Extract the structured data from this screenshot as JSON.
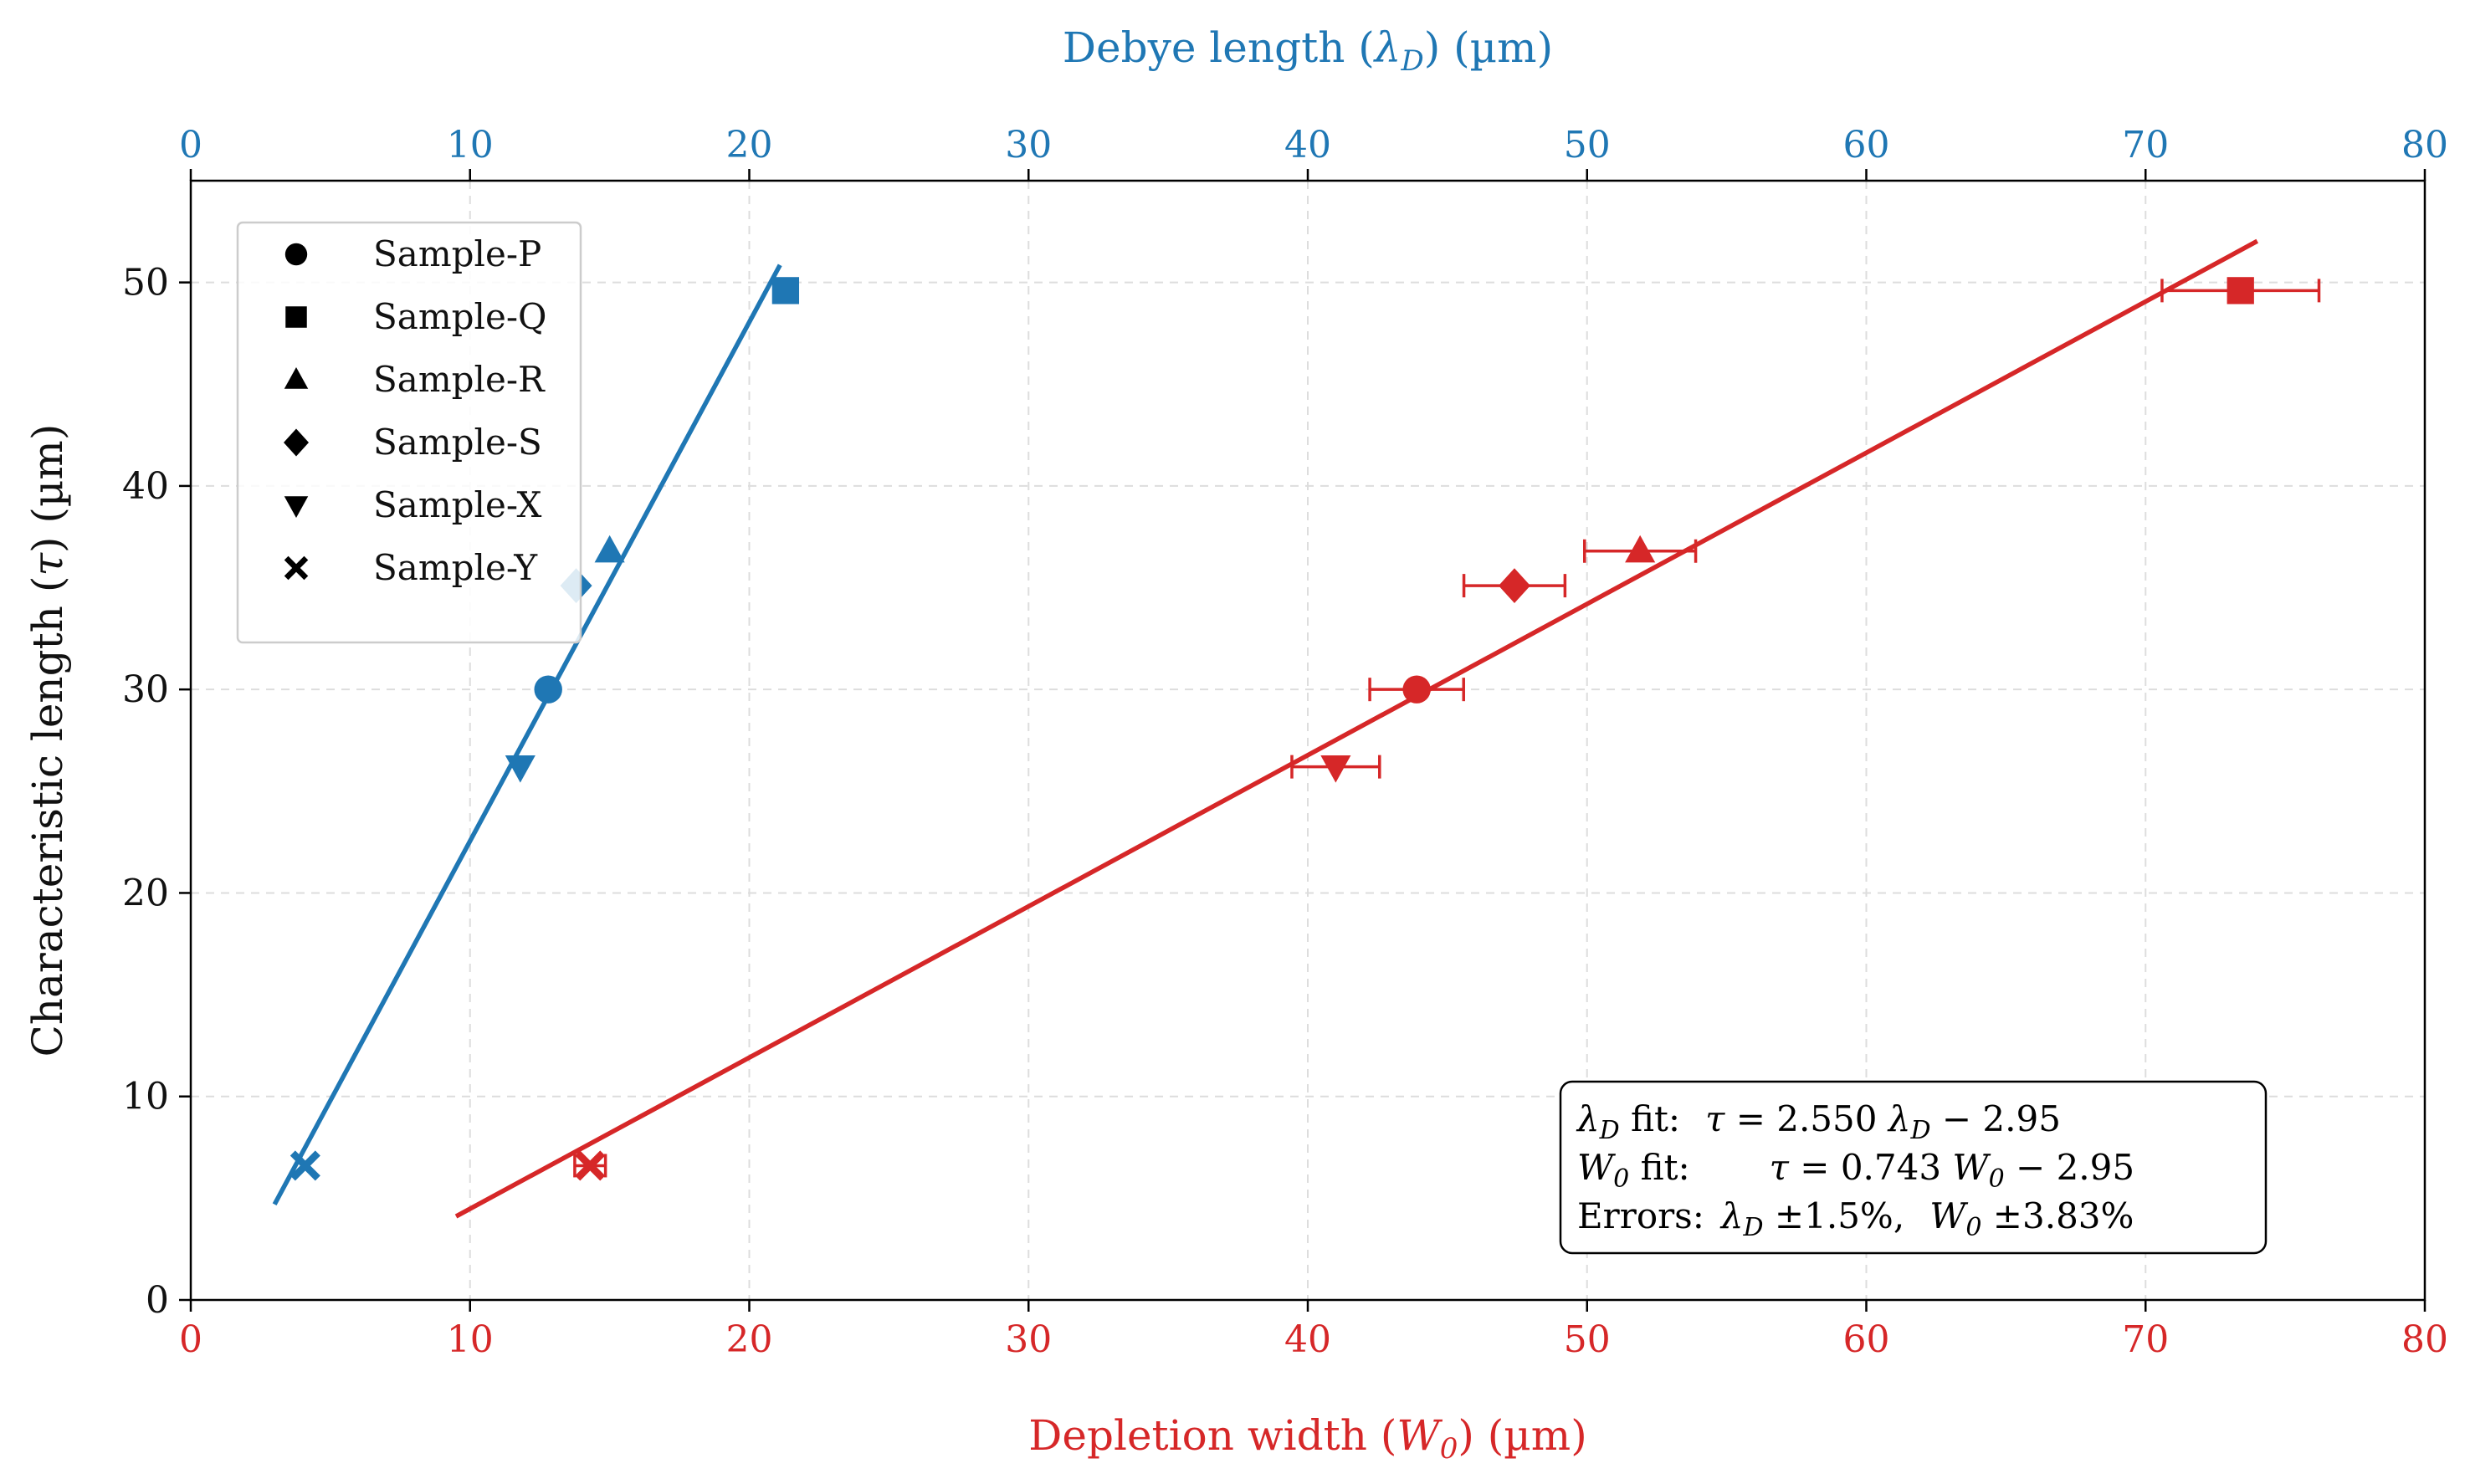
{
  "chart_data": {
    "type": "scatter",
    "colors": {
      "lambda": "#1f77b4",
      "w0": "#d62728",
      "grid": "#dddddd",
      "axis": "#000000"
    },
    "y_axis": {
      "label": "Characteristic length (τ) (µm)",
      "label_parts": {
        "pre": "Characteristic length (",
        "sym": "τ",
        "post": ") (µm)"
      },
      "lim": [
        0,
        55
      ],
      "ticks": [
        0,
        10,
        20,
        30,
        40,
        50
      ],
      "tick_labels": [
        "0",
        "10",
        "20",
        "30",
        "40",
        "50"
      ]
    },
    "x_bottom": {
      "label": "Depletion width (W0) (µm)",
      "label_parts": {
        "pre": "Depletion width (",
        "sym": "W",
        "sub": "0",
        "post": ") (µm)"
      },
      "lim": [
        0,
        80
      ],
      "ticks": [
        0,
        10,
        20,
        30,
        40,
        50,
        60,
        70,
        80
      ],
      "tick_labels": [
        "0",
        "10",
        "20",
        "30",
        "40",
        "50",
        "60",
        "70",
        "80"
      ]
    },
    "x_top": {
      "label": "Debye length (λD) (µm)",
      "label_parts": {
        "pre": "Debye length (",
        "sym": "λ",
        "sub": "D",
        "post": ") (µm)"
      },
      "lim": [
        0,
        80
      ],
      "ticks": [
        0,
        10,
        20,
        30,
        40,
        50,
        60,
        70,
        80
      ],
      "tick_labels": [
        "0",
        "10",
        "20",
        "30",
        "40",
        "50",
        "60",
        "70",
        "80"
      ]
    },
    "grid": true,
    "legend": {
      "location": "upper-left",
      "entries": [
        {
          "label": "Sample-P",
          "marker": "circle"
        },
        {
          "label": "Sample-Q",
          "marker": "square"
        },
        {
          "label": "Sample-R",
          "marker": "triangle-up"
        },
        {
          "label": "Sample-S",
          "marker": "diamond"
        },
        {
          "label": "Sample-X",
          "marker": "triangle-down"
        },
        {
          "label": "Sample-Y",
          "marker": "x-filled"
        }
      ]
    },
    "series": [
      {
        "name": "λD",
        "axis": "top",
        "color_key": "lambda",
        "points": [
          {
            "sample": "Sample-P",
            "marker": "circle",
            "x": 12.8,
            "y": 30.0
          },
          {
            "sample": "Sample-Q",
            "marker": "square",
            "x": 21.3,
            "y": 49.6
          },
          {
            "sample": "Sample-R",
            "marker": "triangle-up",
            "x": 15.0,
            "y": 36.8
          },
          {
            "sample": "Sample-S",
            "marker": "diamond",
            "x": 13.8,
            "y": 35.1
          },
          {
            "sample": "Sample-X",
            "marker": "triangle-down",
            "x": 11.8,
            "y": 26.2
          },
          {
            "sample": "Sample-Y",
            "marker": "x-filled",
            "x": 4.1,
            "y": 6.6
          }
        ],
        "fit": {
          "slope": 2.55,
          "intercept": -2.95,
          "x_range": [
            3.0,
            21.1
          ]
        }
      },
      {
        "name": "W0",
        "axis": "bottom",
        "color_key": "w0",
        "points": [
          {
            "sample": "Sample-P",
            "marker": "circle",
            "x": 43.9,
            "y": 30.0,
            "xerr": 1.68
          },
          {
            "sample": "Sample-Q",
            "marker": "square",
            "x": 73.4,
            "y": 49.6,
            "xerr": 2.81
          },
          {
            "sample": "Sample-R",
            "marker": "triangle-up",
            "x": 51.9,
            "y": 36.8,
            "xerr": 1.99
          },
          {
            "sample": "Sample-S",
            "marker": "diamond",
            "x": 47.4,
            "y": 35.1,
            "xerr": 1.81
          },
          {
            "sample": "Sample-X",
            "marker": "triangle-down",
            "x": 41.0,
            "y": 26.2,
            "xerr": 1.57
          },
          {
            "sample": "Sample-Y",
            "marker": "x-filled",
            "x": 14.3,
            "y": 6.6,
            "xerr": 0.55
          }
        ],
        "fit": {
          "slope": 0.743,
          "intercept": -2.95,
          "x_range": [
            9.5,
            74.0
          ]
        }
      }
    ],
    "annotation": {
      "line1": {
        "sym": "λ",
        "sub": "D",
        "label": " fit:",
        "eq_lhs": "τ",
        "eq_rhs": " = 2.550 ",
        "eq_sym": "λ",
        "eq_sub": "D",
        "eq_tail": " − 2.95"
      },
      "line2": {
        "sym": "W",
        "sub": "0",
        "label": " fit:",
        "eq_lhs": "τ",
        "eq_rhs": " = 0.743 ",
        "eq_sym": "W",
        "eq_sub": "0",
        "eq_tail": " − 2.95"
      },
      "line3": {
        "label": "Errors:",
        "sym1": "λ",
        "sub1": "D",
        "val1": " ±1.5%,",
        "sym2": "W",
        "sub2": "0",
        "val2": " ±3.83%"
      }
    }
  }
}
